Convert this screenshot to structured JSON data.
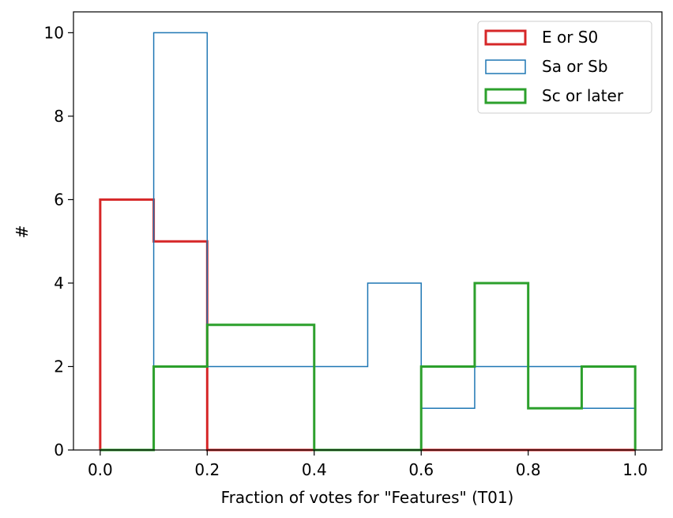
{
  "chart_data": {
    "type": "histogram",
    "xlabel": "Fraction of votes for \"Features\" (T01)",
    "ylabel": "#",
    "xlim": [
      -0.05,
      1.05
    ],
    "ylim": [
      0,
      10.5
    ],
    "xticks": [
      0.0,
      0.2,
      0.4,
      0.6,
      0.8,
      1.0
    ],
    "xtick_labels": [
      "0.0",
      "0.2",
      "0.4",
      "0.6",
      "0.8",
      "1.0"
    ],
    "yticks": [
      0,
      2,
      4,
      6,
      8,
      10
    ],
    "ytick_labels": [
      "0",
      "2",
      "4",
      "6",
      "8",
      "10"
    ],
    "bin_edges": [
      0.0,
      0.1,
      0.2,
      0.3,
      0.4,
      0.5,
      0.6,
      0.7,
      0.8,
      0.9,
      1.0
    ],
    "series": [
      {
        "name": "E or S0",
        "color": "#d62728",
        "line_style": "thick",
        "counts": [
          6,
          5,
          0,
          0,
          0,
          0,
          0,
          0,
          0,
          0
        ]
      },
      {
        "name": "Sa or Sb",
        "color": "#1f77b4",
        "line_style": "thin",
        "counts": [
          0,
          10,
          2,
          2,
          2,
          4,
          1,
          2,
          2,
          1
        ]
      },
      {
        "name": "Sc or later",
        "color": "#2ca02c",
        "line_style": "thick",
        "counts": [
          0,
          2,
          3,
          3,
          0,
          0,
          2,
          4,
          1,
          2
        ]
      }
    ],
    "legend_position": "upper-right"
  }
}
